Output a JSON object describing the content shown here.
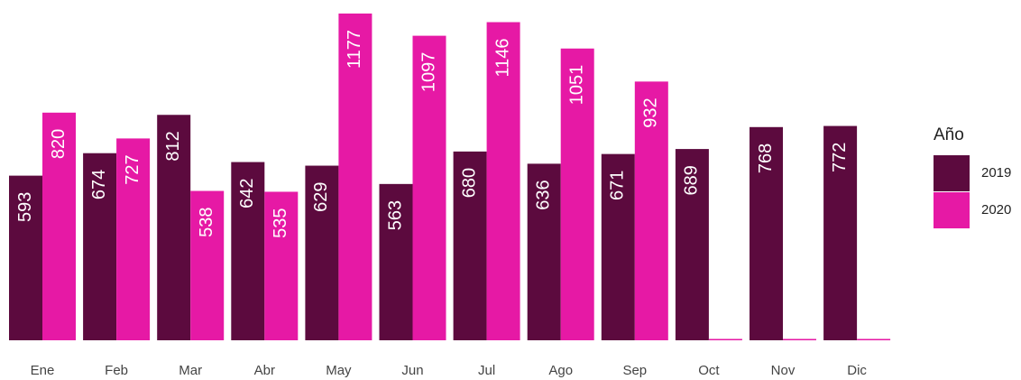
{
  "chart_data": {
    "type": "bar",
    "categories": [
      "Ene",
      "Feb",
      "Mar",
      "Abr",
      "May",
      "Jun",
      "Jul",
      "Ago",
      "Sep",
      "Oct",
      "Nov",
      "Dic"
    ],
    "series": [
      {
        "name": "2019",
        "color": "#5c0a3e",
        "values": [
          593,
          674,
          812,
          642,
          629,
          563,
          680,
          636,
          671,
          689,
          768,
          772
        ]
      },
      {
        "name": "2020",
        "color": "#e619a5",
        "values": [
          820,
          727,
          538,
          535,
          1177,
          1097,
          1146,
          1051,
          932,
          0,
          0,
          0
        ]
      }
    ],
    "legend_title": "Año",
    "legend": "right"
  }
}
